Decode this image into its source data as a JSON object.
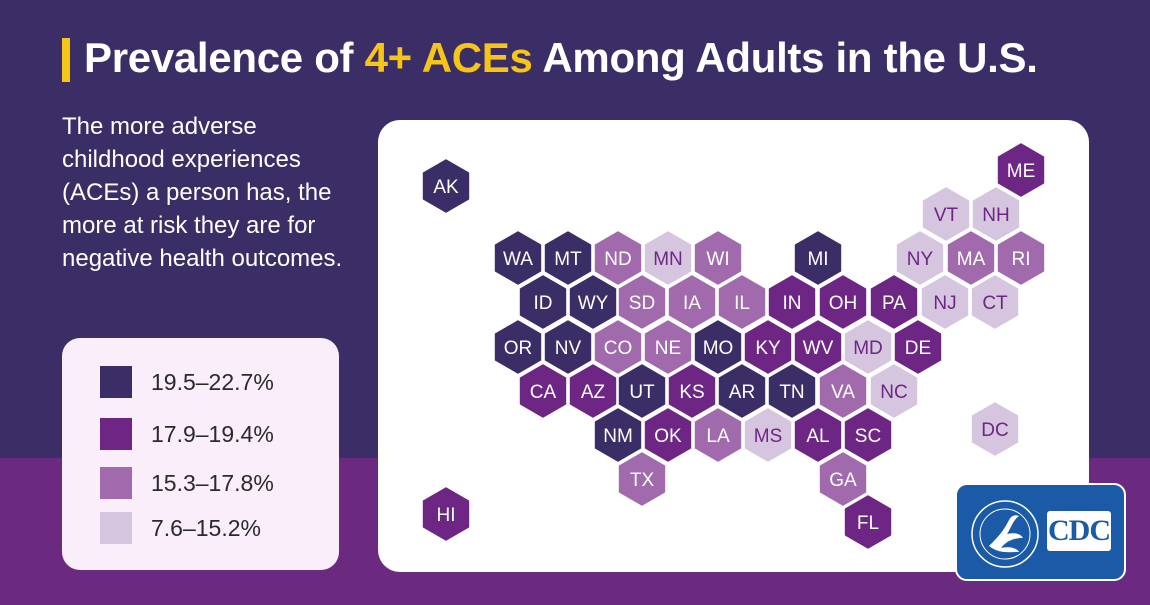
{
  "title": {
    "before": "Prevalence of ",
    "highlight": "4+ ACEs",
    "after": " Among Adults in the U.S."
  },
  "intro": "The more adverse childhood experiences (ACEs) a person has, the more at risk they are for negative health outcomes.",
  "colors": {
    "background_top": "#3b2d66",
    "background_bottom": "#6b2a80",
    "title_accent": "#f5c518",
    "cdc_blue": "#1a5aa6"
  },
  "legend": [
    {
      "label": "19.5–22.7%",
      "color": "#3b2d66"
    },
    {
      "label": "17.9–19.4%",
      "color": "#6e2685"
    },
    {
      "label": "15.3–17.8%",
      "color": "#a06aac"
    },
    {
      "label": "7.6–15.2%",
      "color": "#d6c5de"
    }
  ],
  "states": [
    {
      "abbr": "AK",
      "bin": 0
    },
    {
      "abbr": "ME",
      "bin": 1
    },
    {
      "abbr": "VT",
      "bin": 3
    },
    {
      "abbr": "NH",
      "bin": 3
    },
    {
      "abbr": "WA",
      "bin": 0
    },
    {
      "abbr": "MT",
      "bin": 0
    },
    {
      "abbr": "ND",
      "bin": 2
    },
    {
      "abbr": "MN",
      "bin": 3
    },
    {
      "abbr": "WI",
      "bin": 2
    },
    {
      "abbr": "MI",
      "bin": 0
    },
    {
      "abbr": "NY",
      "bin": 3
    },
    {
      "abbr": "MA",
      "bin": 2
    },
    {
      "abbr": "RI",
      "bin": 2
    },
    {
      "abbr": "ID",
      "bin": 0
    },
    {
      "abbr": "WY",
      "bin": 0
    },
    {
      "abbr": "SD",
      "bin": 2
    },
    {
      "abbr": "IA",
      "bin": 2
    },
    {
      "abbr": "IL",
      "bin": 2
    },
    {
      "abbr": "IN",
      "bin": 1
    },
    {
      "abbr": "OH",
      "bin": 1
    },
    {
      "abbr": "PA",
      "bin": 1
    },
    {
      "abbr": "NJ",
      "bin": 3
    },
    {
      "abbr": "CT",
      "bin": 3
    },
    {
      "abbr": "OR",
      "bin": 0
    },
    {
      "abbr": "NV",
      "bin": 0
    },
    {
      "abbr": "CO",
      "bin": 2
    },
    {
      "abbr": "NE",
      "bin": 2
    },
    {
      "abbr": "MO",
      "bin": 0
    },
    {
      "abbr": "KY",
      "bin": 1
    },
    {
      "abbr": "WV",
      "bin": 1
    },
    {
      "abbr": "MD",
      "bin": 3
    },
    {
      "abbr": "DE",
      "bin": 1
    },
    {
      "abbr": "CA",
      "bin": 1
    },
    {
      "abbr": "AZ",
      "bin": 1
    },
    {
      "abbr": "UT",
      "bin": 0
    },
    {
      "abbr": "KS",
      "bin": 1
    },
    {
      "abbr": "AR",
      "bin": 0
    },
    {
      "abbr": "TN",
      "bin": 0
    },
    {
      "abbr": "VA",
      "bin": 2
    },
    {
      "abbr": "NC",
      "bin": 3
    },
    {
      "abbr": "NM",
      "bin": 0
    },
    {
      "abbr": "OK",
      "bin": 1
    },
    {
      "abbr": "LA",
      "bin": 2
    },
    {
      "abbr": "MS",
      "bin": 3
    },
    {
      "abbr": "AL",
      "bin": 1
    },
    {
      "abbr": "SC",
      "bin": 1
    },
    {
      "abbr": "DC",
      "bin": 3
    },
    {
      "abbr": "TX",
      "bin": 2
    },
    {
      "abbr": "GA",
      "bin": 2
    },
    {
      "abbr": "HI",
      "bin": 1
    },
    {
      "abbr": "FL",
      "bin": 1
    }
  ],
  "logo": {
    "cdc": "CDC",
    "hhs": "HHS seal"
  }
}
